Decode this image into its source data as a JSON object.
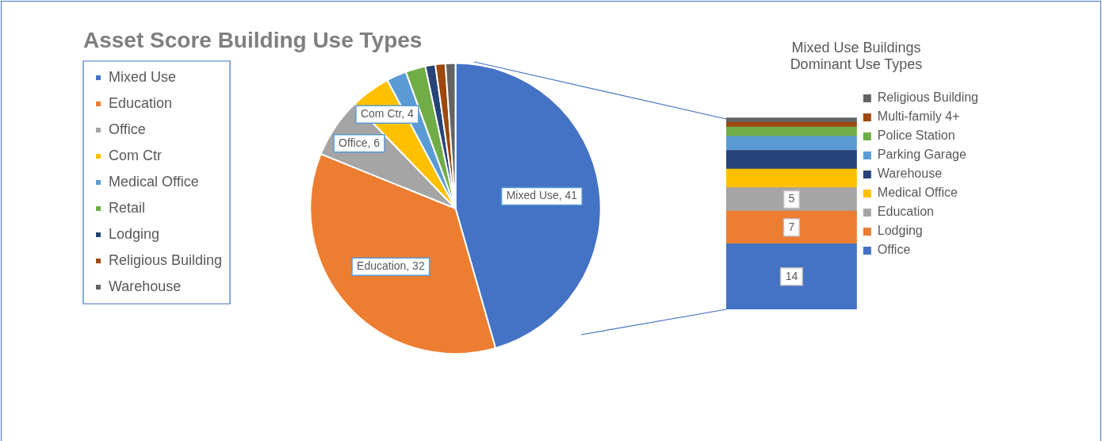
{
  "chart_data": [
    {
      "type": "pie",
      "title": "Asset Score Building Use Types",
      "legend": "left",
      "categories": [
        "Mixed Use",
        "Education",
        "Office",
        "Com Ctr",
        "Medical Office",
        "Retail",
        "Lodging",
        "Religious Building",
        "Warehouse"
      ],
      "values": [
        41,
        32,
        6,
        4,
        2,
        2,
        1,
        1,
        1
      ],
      "colors": [
        "#4472c4",
        "#ed7d31",
        "#a5a5a5",
        "#ffc000",
        "#5b9bd5",
        "#70ad47",
        "#264478",
        "#9e480e",
        "#636363"
      ],
      "value_labels": [
        "Mixed Use, 41",
        "Education, 32",
        "Office, 6",
        "Com Ctr, 4",
        null,
        null,
        null,
        null,
        null
      ]
    },
    {
      "type": "bar",
      "title": "Mixed Use Buildings\nDominant Use Types",
      "legend": "right",
      "stacked": true,
      "categories": [
        null
      ],
      "series": [
        {
          "name": "Office",
          "color": "#4472c4",
          "values": [
            14
          ],
          "value_labels": [
            "14"
          ]
        },
        {
          "name": "Lodging",
          "color": "#ed7d31",
          "values": [
            7
          ],
          "value_labels": [
            "7"
          ]
        },
        {
          "name": "Education",
          "color": "#a5a5a5",
          "values": [
            5
          ],
          "value_labels": [
            "5"
          ]
        },
        {
          "name": "Medical Office",
          "color": "#ffc000",
          "values": [
            4
          ]
        },
        {
          "name": "Warehouse",
          "color": "#264478",
          "values": [
            4
          ]
        },
        {
          "name": "Parking Garage",
          "color": "#5b9bd5",
          "values": [
            3
          ]
        },
        {
          "name": "Police Station",
          "color": "#70ad47",
          "values": [
            2
          ]
        },
        {
          "name": "Multi-family 4+",
          "color": "#9e480e",
          "values": [
            1
          ]
        },
        {
          "name": "Religious Building",
          "color": "#636363",
          "values": [
            1
          ]
        }
      ]
    }
  ]
}
